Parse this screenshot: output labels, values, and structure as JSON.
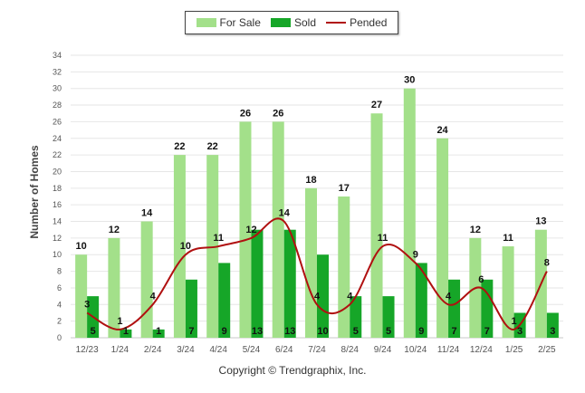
{
  "legend": {
    "for_sale_label": "For Sale",
    "sold_label": "Sold",
    "pended_label": "Pended"
  },
  "credits": "Copyright © Trendgraphix, Inc.",
  "colors": {
    "for_sale": "#a3e08a",
    "sold": "#16a628",
    "pended": "#b01010"
  },
  "chart_data": {
    "type": "bar",
    "title": "",
    "xlabel": "",
    "ylabel": "Number of Homes",
    "ylim": [
      0,
      34
    ],
    "ytick_step": 2,
    "grid": true,
    "legend_position": "top-center",
    "categories": [
      "12/23",
      "1/24",
      "2/24",
      "3/24",
      "4/24",
      "5/24",
      "6/24",
      "7/24",
      "8/24",
      "9/24",
      "10/24",
      "11/24",
      "12/24",
      "1/25",
      "2/25"
    ],
    "series": [
      {
        "name": "For Sale",
        "type": "bar",
        "values": [
          10,
          12,
          14,
          22,
          22,
          26,
          26,
          18,
          17,
          27,
          30,
          24,
          12,
          11,
          13
        ]
      },
      {
        "name": "Sold",
        "type": "bar",
        "values": [
          5,
          1,
          1,
          7,
          9,
          13,
          13,
          10,
          5,
          5,
          9,
          7,
          7,
          3,
          3
        ]
      },
      {
        "name": "Pended",
        "type": "line",
        "values": [
          3,
          1,
          4,
          10,
          11,
          12,
          14,
          4,
          4,
          11,
          9,
          4,
          6,
          1,
          8
        ]
      }
    ]
  }
}
